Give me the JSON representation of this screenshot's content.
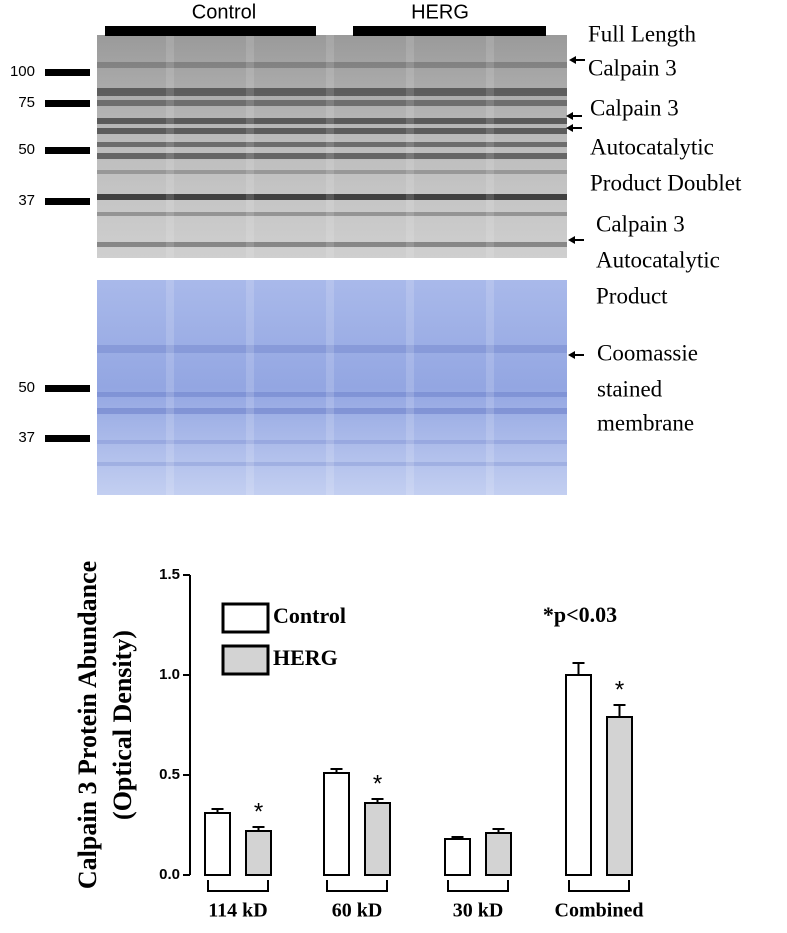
{
  "blot": {
    "groups": [
      "Control",
      "HERG"
    ],
    "markers": [
      "100",
      "75",
      "50",
      "37"
    ],
    "annotations": [
      {
        "lines": [
          "Full Length",
          "Calpain 3"
        ]
      },
      {
        "lines": [
          "Calpain 3",
          "Autocatalytic",
          "Product Doublet"
        ]
      },
      {
        "lines": [
          "Calpain 3",
          "Autocatalytic",
          "Product"
        ]
      }
    ]
  },
  "coomassie": {
    "markers": [
      "50",
      "37"
    ],
    "annotation": {
      "lines": [
        "Coomassie",
        "stained",
        "membrane"
      ]
    }
  },
  "chart_data": {
    "type": "bar",
    "ylabel": [
      "Calpain 3 Protein Abundance",
      "(Optical Density)"
    ],
    "categories": [
      "114 kD",
      "60 kD",
      "30 kD",
      "Combined"
    ],
    "series": [
      {
        "name": "Control",
        "color": "#ffffff",
        "values": [
          0.31,
          0.51,
          0.18,
          1.0
        ],
        "errors": [
          0.02,
          0.02,
          0.01,
          0.06
        ]
      },
      {
        "name": "HERG",
        "color": "#d3d3d3",
        "values": [
          0.22,
          0.36,
          0.21,
          0.79
        ],
        "errors": [
          0.02,
          0.02,
          0.02,
          0.06
        ]
      }
    ],
    "ylim": [
      0,
      1.5
    ],
    "yticks": [
      {
        "value": 0,
        "label": "0.0"
      },
      {
        "value": 0.5,
        "label": "0.5"
      },
      {
        "value": 1.0,
        "label": "1.0"
      },
      {
        "value": 1.5,
        "label": "1.5"
      }
    ],
    "significance": [
      {
        "category": "114 kD",
        "label": "*"
      },
      {
        "category": "60 kD",
        "label": "*"
      },
      {
        "category": "Combined",
        "label": "*"
      }
    ],
    "annotation": "*p<0.03",
    "legend": "upper left"
  }
}
